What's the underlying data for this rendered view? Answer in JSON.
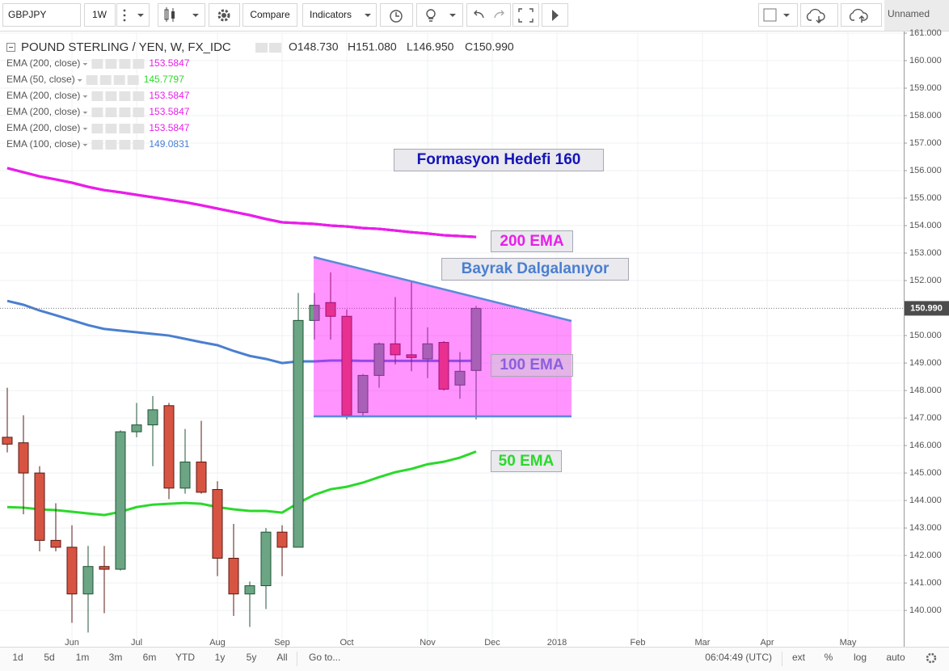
{
  "toolbar": {
    "symbol": "GBPJPY",
    "interval": "1W",
    "compare": "Compare",
    "indicators": "Indicators",
    "layout": "Unnamed"
  },
  "bottom_bar": {
    "ranges": [
      "1d",
      "5d",
      "1m",
      "3m",
      "6m",
      "YTD",
      "1y",
      "5y",
      "All"
    ],
    "goto": "Go to...",
    "clock": "06:04:49 (UTC)",
    "options": [
      "ext",
      "%",
      "log",
      "auto"
    ]
  },
  "chart_data": {
    "type": "candlestick",
    "title": "POUND STERLING / YEN, W, FX_IDC",
    "ohlc_header": [
      "O148.730",
      "H151.080",
      "L146.950",
      "C150.990"
    ],
    "categories": [
      null,
      null,
      null,
      null,
      null,
      null,
      null,
      null,
      null,
      null,
      null,
      null,
      null,
      null,
      null,
      null,
      null,
      null,
      null,
      null,
      null,
      null,
      null,
      null,
      null,
      null,
      null,
      null,
      null,
      null
    ],
    "open": [
      146.3,
      146.1,
      145.0,
      142.55,
      142.3,
      140.6,
      141.6,
      141.5,
      146.5,
      146.75,
      147.45,
      144.45,
      145.4,
      144.4,
      141.9,
      140.6,
      140.9,
      142.85,
      142.3,
      150.55,
      151.2,
      150.7,
      147.2,
      148.55,
      149.7,
      149.3,
      149.15,
      149.75,
      148.2,
      148.73
    ],
    "high": [
      148.1,
      147.1,
      145.25,
      143.9,
      143.1,
      142.35,
      142.35,
      146.55,
      147.55,
      147.8,
      147.55,
      146.6,
      146.9,
      144.7,
      143.15,
      141.05,
      143.0,
      143.1,
      151.55,
      151.55,
      152.3,
      150.95,
      148.6,
      149.75,
      151.4,
      151.95,
      150.3,
      149.8,
      149.4,
      151.08
    ],
    "low": [
      145.75,
      143.5,
      142.15,
      142.15,
      139.55,
      139.2,
      139.9,
      141.45,
      146.3,
      145.25,
      144.05,
      144.25,
      144.25,
      141.25,
      139.8,
      139.4,
      140.05,
      141.25,
      142.3,
      149.85,
      149.85,
      146.95,
      147.05,
      148.1,
      148.95,
      148.7,
      148.45,
      148.0,
      147.7,
      146.95
    ],
    "close": [
      146.05,
      145.0,
      142.55,
      142.3,
      140.6,
      141.6,
      141.5,
      146.5,
      146.75,
      147.3,
      144.45,
      145.4,
      144.3,
      141.9,
      140.6,
      140.9,
      142.85,
      142.3,
      150.55,
      151.1,
      150.7,
      147.1,
      148.55,
      149.7,
      149.3,
      149.2,
      149.7,
      148.05,
      148.7,
      150.99
    ],
    "up_color": "#6ba583",
    "down_color": "#d75442",
    "series": [
      {
        "name": "EMA (200, close)",
        "color": "#e91ee9",
        "last": 153.5847,
        "values": [
          156.09,
          155.94,
          155.79,
          155.68,
          155.56,
          155.41,
          155.29,
          155.21,
          155.12,
          155.03,
          154.94,
          154.85,
          154.74,
          154.62,
          154.5,
          154.38,
          154.24,
          154.12,
          154.09,
          154.06,
          154.0,
          153.97,
          153.91,
          153.88,
          153.82,
          153.76,
          153.71,
          153.65,
          153.62,
          153.5847
        ]
      },
      {
        "name": "EMA (50, close)",
        "color": "#2bd92b",
        "last": 145.7797,
        "values": [
          143.76,
          143.74,
          143.68,
          143.65,
          143.59,
          143.53,
          143.47,
          143.59,
          143.76,
          143.85,
          143.88,
          143.91,
          143.88,
          143.76,
          143.68,
          143.62,
          143.62,
          143.56,
          143.91,
          144.21,
          144.41,
          144.5,
          144.65,
          144.85,
          145.03,
          145.15,
          145.32,
          145.41,
          145.56,
          145.7797
        ]
      },
      {
        "name": "EMA (200, close)",
        "color": "#e91ee9",
        "last": 153.5847,
        "values": [
          156.09,
          155.94,
          155.79,
          155.68,
          155.56,
          155.41,
          155.29,
          155.21,
          155.12,
          155.03,
          154.94,
          154.85,
          154.74,
          154.62,
          154.5,
          154.38,
          154.24,
          154.12,
          154.09,
          154.06,
          154.0,
          153.97,
          153.91,
          153.88,
          153.82,
          153.76,
          153.71,
          153.65,
          153.62,
          153.5847
        ]
      },
      {
        "name": "EMA (200, close)",
        "color": "#e91ee9",
        "last": 153.5847,
        "values": [
          156.09,
          155.94,
          155.79,
          155.68,
          155.56,
          155.41,
          155.29,
          155.21,
          155.12,
          155.03,
          154.94,
          154.85,
          154.74,
          154.62,
          154.5,
          154.38,
          154.24,
          154.12,
          154.09,
          154.06,
          154.0,
          153.97,
          153.91,
          153.88,
          153.82,
          153.76,
          153.71,
          153.65,
          153.62,
          153.5847
        ]
      },
      {
        "name": "EMA (200, close)",
        "color": "#e91ee9",
        "last": 153.5847,
        "values": [
          156.09,
          155.94,
          155.79,
          155.68,
          155.56,
          155.41,
          155.29,
          155.21,
          155.12,
          155.03,
          154.94,
          154.85,
          154.74,
          154.62,
          154.5,
          154.38,
          154.24,
          154.12,
          154.09,
          154.06,
          154.0,
          153.97,
          153.91,
          153.88,
          153.82,
          153.76,
          153.71,
          153.65,
          153.62,
          153.5847
        ]
      },
      {
        "name": "EMA (100, close)",
        "color": "#4a7fd0",
        "last": 149.0831,
        "values": [
          151.26,
          151.12,
          150.91,
          150.74,
          150.56,
          150.38,
          150.24,
          150.18,
          150.12,
          150.06,
          150.0,
          149.88,
          149.76,
          149.65,
          149.44,
          149.26,
          149.15,
          149.0,
          149.06,
          149.06,
          149.09,
          149.09,
          149.08,
          149.08,
          149.08,
          149.08,
          149.08,
          149.08,
          149.08,
          149.0831
        ]
      }
    ],
    "xlim": [
      -0.45,
      55.45
    ],
    "xticks": [
      {
        "value": 4,
        "label": "Jun"
      },
      {
        "value": 8,
        "label": "Jul"
      },
      {
        "value": 13,
        "label": "Aug"
      },
      {
        "value": 17,
        "label": "Sep"
      },
      {
        "value": 21,
        "label": "Oct"
      },
      {
        "value": 26,
        "label": "Nov"
      },
      {
        "value": 30,
        "label": "Dec"
      },
      {
        "value": 34,
        "label": "2018"
      },
      {
        "value": 39,
        "label": "Feb"
      },
      {
        "value": 43,
        "label": "Mar"
      },
      {
        "value": 47,
        "label": "Apr"
      },
      {
        "value": 52,
        "label": "May"
      }
    ],
    "ylim": [
      138.68,
      161.03
    ],
    "yticks": [
      {
        "value": 140,
        "label": "140.000"
      },
      {
        "value": 141,
        "label": "141.000"
      },
      {
        "value": 142,
        "label": "142.000"
      },
      {
        "value": 143,
        "label": "143.000"
      },
      {
        "value": 144,
        "label": "144.000"
      },
      {
        "value": 145,
        "label": "145.000"
      },
      {
        "value": 146,
        "label": "146.000"
      },
      {
        "value": 147,
        "label": "147.000"
      },
      {
        "value": 148,
        "label": "148.000"
      },
      {
        "value": 149,
        "label": "149.000"
      },
      {
        "value": 150,
        "label": "150.000"
      },
      {
        "value": 152,
        "label": "152.000"
      },
      {
        "value": 153,
        "label": "153.000"
      },
      {
        "value": 154,
        "label": "154.000"
      },
      {
        "value": 155,
        "label": "155.000"
      },
      {
        "value": 156,
        "label": "156.000"
      },
      {
        "value": 157,
        "label": "157.000"
      },
      {
        "value": 158,
        "label": "158.000"
      },
      {
        "value": 159,
        "label": "159.000"
      },
      {
        "value": 160,
        "label": "160.000"
      },
      {
        "value": 161,
        "label": "161.000"
      }
    ],
    "last_price": {
      "value": 150.99,
      "label": "150.990"
    },
    "grid": true,
    "annotations": [
      "Formasyon Hedefi 160",
      "200 EMA",
      "Bayrak Dalgalanıyor",
      "100 EMA",
      "50 EMA"
    ]
  }
}
